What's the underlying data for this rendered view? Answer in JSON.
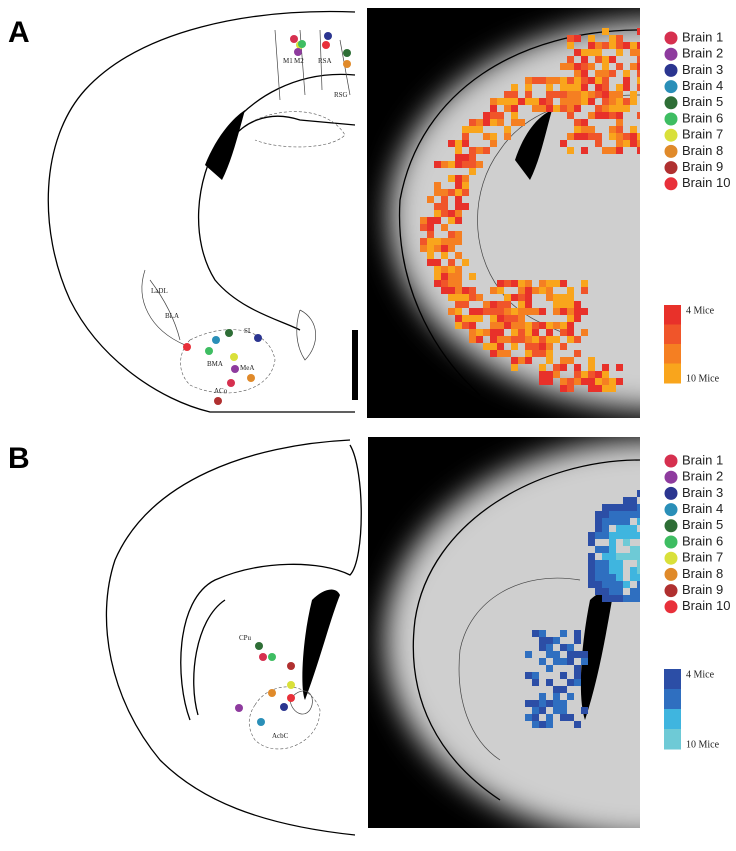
{
  "panels": [
    {
      "label": "A",
      "atlas_labels": [
        "M1",
        "M2",
        "RSA",
        "RSG",
        "LaDL",
        "BLA",
        "SI",
        "BMA",
        "MeA",
        "ACo"
      ],
      "legend": [
        {
          "name": "Brain 1",
          "color": "#d6304f"
        },
        {
          "name": "Brain 2",
          "color": "#8e3b9e"
        },
        {
          "name": "Brain 3",
          "color": "#2b3590"
        },
        {
          "name": "Brain 4",
          "color": "#2a8fb8"
        },
        {
          "name": "Brain 5",
          "color": "#2e6e36"
        },
        {
          "name": "Brain 6",
          "color": "#3ebd62"
        },
        {
          "name": "Brain 7",
          "color": "#d9e03a"
        },
        {
          "name": "Brain 8",
          "color": "#e08a2a"
        },
        {
          "name": "Brain 9",
          "color": "#b03030"
        },
        {
          "name": "Brain 10",
          "color": "#e8303a"
        }
      ],
      "scale": {
        "top": "4 Mice",
        "bottom": "10 Mice",
        "colors": [
          "#e8312a",
          "#f0552a",
          "#f57f22",
          "#f9a51c"
        ]
      }
    },
    {
      "label": "B",
      "atlas_labels": [
        "CPu",
        "AcbC"
      ],
      "legend": [
        {
          "name": "Brain 1",
          "color": "#d6304f"
        },
        {
          "name": "Brain 2",
          "color": "#8e3b9e"
        },
        {
          "name": "Brain 3",
          "color": "#2b3590"
        },
        {
          "name": "Brain 4",
          "color": "#2a8fb8"
        },
        {
          "name": "Brain 5",
          "color": "#2e6e36"
        },
        {
          "name": "Brain 6",
          "color": "#3ebd62"
        },
        {
          "name": "Brain 7",
          "color": "#d9e03a"
        },
        {
          "name": "Brain 8",
          "color": "#e08a2a"
        },
        {
          "name": "Brain 9",
          "color": "#b03030"
        },
        {
          "name": "Brain 10",
          "color": "#e8303a"
        }
      ],
      "scale": {
        "top": "4 Mice",
        "bottom": "10 Mice",
        "colors": [
          "#2c4ea6",
          "#2f6fc0",
          "#3fb5df",
          "#6ecad6"
        ]
      }
    }
  ]
}
